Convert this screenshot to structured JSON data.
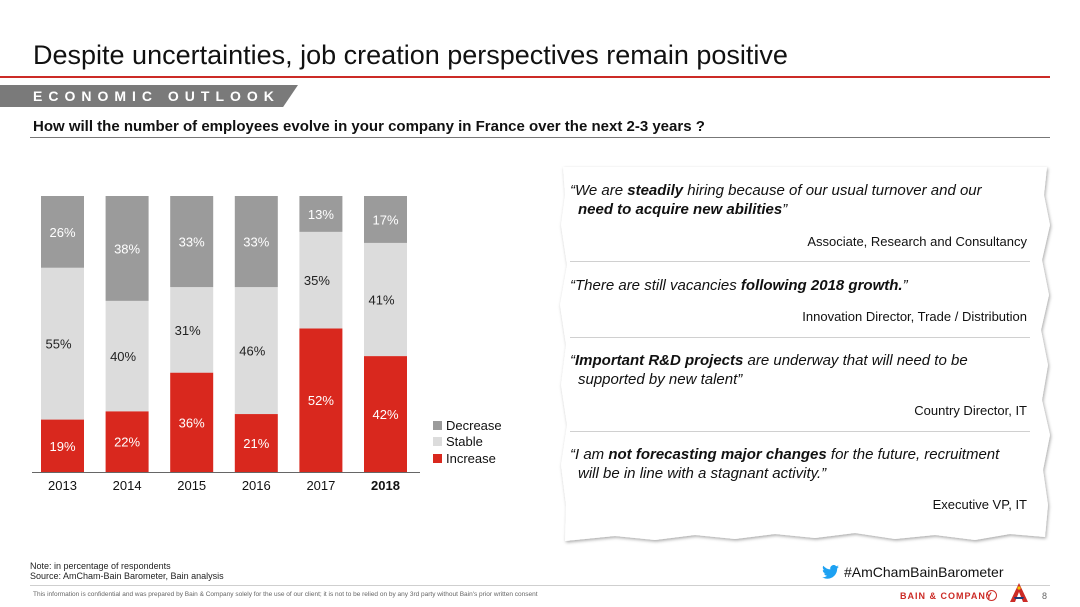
{
  "header": {
    "title": "Despite uncertainties, job creation perspectives remain positive",
    "section": "ECONOMIC OUTLOOK",
    "question": "How will the number of employees evolve in your company in France over the next 2-3 years ?"
  },
  "colors": {
    "accent": "#cc2b26",
    "decrease": "#9b9b9b",
    "stable": "#dcdcdc",
    "increase": "#d9281e"
  },
  "chart_data": {
    "type": "bar",
    "stacked": true,
    "percent": true,
    "categories": [
      "2013",
      "2014",
      "2015",
      "2016",
      "2017",
      "2018"
    ],
    "highlight_category": "2018",
    "series": [
      {
        "name": "Increase",
        "values": [
          19,
          22,
          36,
          21,
          52,
          42
        ]
      },
      {
        "name": "Stable",
        "values": [
          55,
          40,
          31,
          46,
          35,
          41
        ]
      },
      {
        "name": "Decrease",
        "values": [
          26,
          38,
          33,
          33,
          13,
          17
        ]
      }
    ],
    "legend_order": [
      "Decrease",
      "Stable",
      "Increase"
    ],
    "legend_position": "right",
    "ylim": [
      0,
      100
    ],
    "grid": false
  },
  "quotes": [
    {
      "pre": "“We are ",
      "bold": "steadily",
      "post": " hiring because of our usual turnover and our",
      "line2_bold": "need to acquire new abilities",
      "line2_post": "”",
      "author": "Associate, Research and Consultancy"
    },
    {
      "pre": "“There are still vacancies ",
      "bold": "following 2018 growth.",
      "post": "”",
      "line2_bold": "",
      "line2_post": "",
      "author": "Innovation Director, Trade / Distribution"
    },
    {
      "pre": "“",
      "bold": "Important R&D projects",
      "post": " are underway that will need to be",
      "line2_bold": "",
      "line2_post": "supported by new talent”",
      "author": "Country Director, IT"
    },
    {
      "pre": "“I am ",
      "bold": "not forecasting major changes",
      "post": " for the future, recruitment",
      "line2_bold": "",
      "line2_post": "will be in line with a stagnant activity.”",
      "author": "Executive VP, IT"
    }
  ],
  "footer": {
    "note": "Note: in percentage of respondents",
    "source": "Source: AmCham-Bain Barometer, Bain analysis",
    "hashtag": "#AmChamBainBarometer",
    "hashtag_icon": "twitter-bird-icon",
    "disclaimer": "This information is confidential and was prepared by Bain & Company solely for the use of our client; it is not to be relied on by any 3rd party without Bain's prior written consent",
    "brand": "BAIN & COMPANY",
    "page": "8"
  }
}
